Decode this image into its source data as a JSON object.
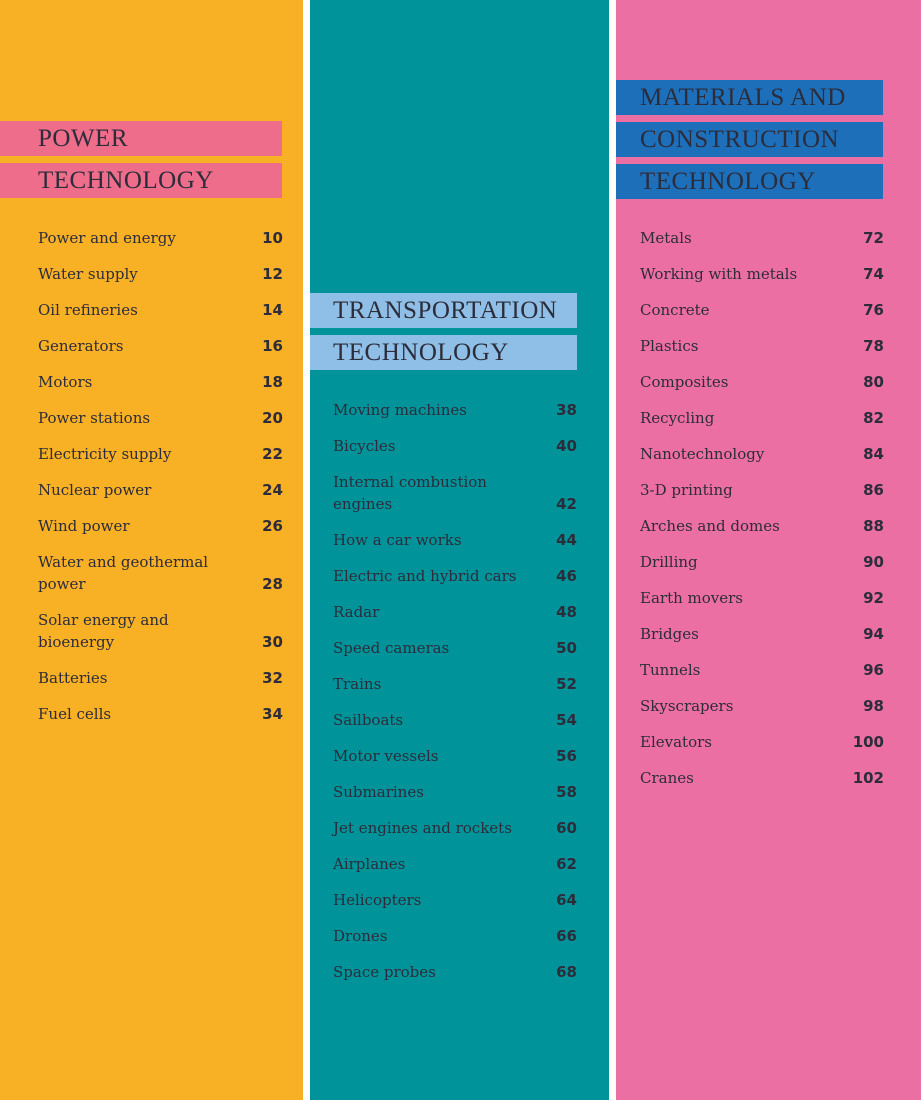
{
  "columns": [
    {
      "heading": [
        "POWER",
        "TECHNOLOGY"
      ],
      "entries": [
        {
          "title": [
            "Power and energy"
          ],
          "page": 10
        },
        {
          "title": [
            "Water supply"
          ],
          "page": 12
        },
        {
          "title": [
            "Oil refineries"
          ],
          "page": 14
        },
        {
          "title": [
            "Generators"
          ],
          "page": 16
        },
        {
          "title": [
            "Motors"
          ],
          "page": 18
        },
        {
          "title": [
            "Power stations"
          ],
          "page": 20
        },
        {
          "title": [
            "Electricity supply"
          ],
          "page": 22
        },
        {
          "title": [
            "Nuclear power"
          ],
          "page": 24
        },
        {
          "title": [
            "Wind power"
          ],
          "page": 26
        },
        {
          "title": [
            "Water and geothermal",
            "power"
          ],
          "page": 28
        },
        {
          "title": [
            "Solar energy and",
            "bioenergy"
          ],
          "page": 30
        },
        {
          "title": [
            "Batteries"
          ],
          "page": 32
        },
        {
          "title": [
            "Fuel cells"
          ],
          "page": 34
        }
      ]
    },
    {
      "heading": [
        "TRANSPORTATION",
        "TECHNOLOGY"
      ],
      "entries": [
        {
          "title": [
            "Moving machines"
          ],
          "page": 38
        },
        {
          "title": [
            "Bicycles"
          ],
          "page": 40
        },
        {
          "title": [
            "Internal combustion",
            "engines"
          ],
          "page": 42
        },
        {
          "title": [
            "How a car works"
          ],
          "page": 44
        },
        {
          "title": [
            "Electric and hybrid cars"
          ],
          "page": 46
        },
        {
          "title": [
            "Radar"
          ],
          "page": 48
        },
        {
          "title": [
            "Speed cameras"
          ],
          "page": 50
        },
        {
          "title": [
            "Trains"
          ],
          "page": 52
        },
        {
          "title": [
            "Sailboats"
          ],
          "page": 54
        },
        {
          "title": [
            "Motor vessels"
          ],
          "page": 56
        },
        {
          "title": [
            "Submarines"
          ],
          "page": 58
        },
        {
          "title": [
            "Jet engines and rockets"
          ],
          "page": 60
        },
        {
          "title": [
            "Airplanes"
          ],
          "page": 62
        },
        {
          "title": [
            "Helicopters"
          ],
          "page": 64
        },
        {
          "title": [
            "Drones"
          ],
          "page": 66
        },
        {
          "title": [
            "Space probes"
          ],
          "page": 68
        }
      ]
    },
    {
      "heading": [
        "MATERIALS AND",
        "CONSTRUCTION",
        "TECHNOLOGY"
      ],
      "entries": [
        {
          "title": [
            "Metals"
          ],
          "page": 72
        },
        {
          "title": [
            "Working with metals"
          ],
          "page": 74
        },
        {
          "title": [
            "Concrete"
          ],
          "page": 76
        },
        {
          "title": [
            "Plastics"
          ],
          "page": 78
        },
        {
          "title": [
            "Composites"
          ],
          "page": 80
        },
        {
          "title": [
            "Recycling"
          ],
          "page": 82
        },
        {
          "title": [
            "Nanotechnology"
          ],
          "page": 84
        },
        {
          "title": [
            "3-D printing"
          ],
          "page": 86
        },
        {
          "title": [
            "Arches and domes"
          ],
          "page": 88
        },
        {
          "title": [
            "Drilling"
          ],
          "page": 90
        },
        {
          "title": [
            "Earth movers"
          ],
          "page": 92
        },
        {
          "title": [
            "Bridges"
          ],
          "page": 94
        },
        {
          "title": [
            "Tunnels"
          ],
          "page": 96
        },
        {
          "title": [
            "Skyscrapers"
          ],
          "page": 98
        },
        {
          "title": [
            "Elevators"
          ],
          "page": 100
        },
        {
          "title": [
            "Cranes"
          ],
          "page": 102
        }
      ]
    }
  ]
}
